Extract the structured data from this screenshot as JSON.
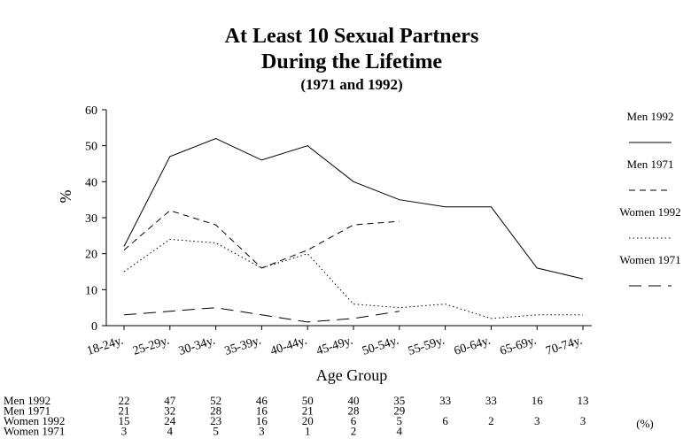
{
  "chart_data": {
    "type": "line",
    "title": "At Least 10 Sexual Partners",
    "title_line2": "During the Lifetime",
    "subtitle": "(1971 and 1992)",
    "xlabel": "Age Group",
    "ylabel": "%",
    "ylim": [
      0,
      60
    ],
    "yticks": [
      0,
      10,
      20,
      30,
      40,
      50,
      60
    ],
    "categories": [
      "18-24y.",
      "25-29y.",
      "30-34y.",
      "35-39y.",
      "40-44y.",
      "45-49y.",
      "50-54y.",
      "55-59y.",
      "60-64y.",
      "65-69y.",
      "70-74y."
    ],
    "legend_position": "right",
    "series": [
      {
        "name": "Men 1992",
        "dash": "solid",
        "values": [
          22,
          47,
          52,
          46,
          50,
          40,
          35,
          33,
          33,
          16,
          13
        ]
      },
      {
        "name": "Men 1971",
        "dash": "dashed",
        "values": [
          21,
          32,
          28,
          16,
          21,
          28,
          29,
          null,
          null,
          null,
          null
        ]
      },
      {
        "name": "Women 1992",
        "dash": "dotted",
        "values": [
          15,
          24,
          23,
          16,
          20,
          6,
          5,
          6,
          2,
          3,
          3
        ]
      },
      {
        "name": "Women 1971",
        "dash": "longdash",
        "values": [
          3,
          4,
          5,
          3,
          1,
          2,
          4,
          null,
          null,
          null,
          null
        ]
      }
    ],
    "table_unit": "(%)"
  }
}
